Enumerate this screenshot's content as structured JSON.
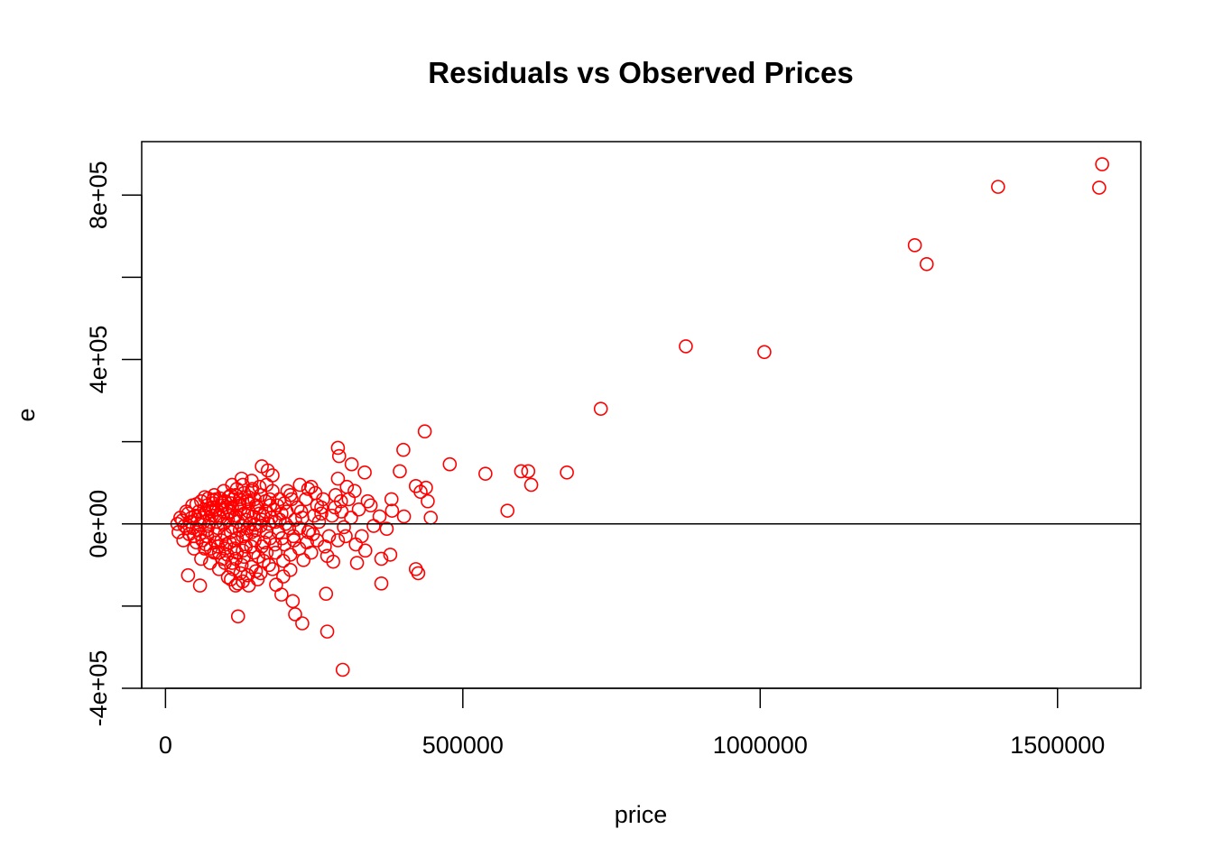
{
  "chart_data": {
    "type": "scatter",
    "title": "Residuals vs Observed Prices",
    "xlabel": "price",
    "ylabel": "e",
    "xlim": [
      -40000,
      1640000
    ],
    "ylim": [
      -400000,
      930000
    ],
    "x_ticks": [
      0,
      500000,
      1000000,
      1500000
    ],
    "x_tick_labels": [
      "0",
      "500000",
      "1000000",
      "1500000"
    ],
    "y_ticks": [
      -400000,
      -200000,
      0,
      200000,
      400000,
      600000,
      800000
    ],
    "y_tick_labels": [
      "-4e+05",
      "",
      "0e+00",
      "",
      "4e+05",
      "",
      "8e+05"
    ],
    "grid": false,
    "reference_line_y": 0,
    "colors": {
      "points": "#ff0000",
      "axes": "#000000",
      "reference_line": "#000000"
    },
    "series": [
      {
        "marker": "open-circle",
        "points": [
          [
            1575000,
            875000
          ],
          [
            1570000,
            818000
          ],
          [
            1400000,
            820000
          ],
          [
            1260000,
            678000
          ],
          [
            1280000,
            632000
          ],
          [
            875000,
            432000
          ],
          [
            1007000,
            418000
          ],
          [
            732000,
            280000
          ],
          [
            436000,
            225000
          ],
          [
            400000,
            180000
          ],
          [
            290000,
            185000
          ],
          [
            292000,
            165000
          ],
          [
            478000,
            145000
          ],
          [
            313000,
            145000
          ],
          [
            335000,
            125000
          ],
          [
            538000,
            122000
          ],
          [
            598000,
            128000
          ],
          [
            610000,
            128000
          ],
          [
            675000,
            125000
          ],
          [
            394000,
            128000
          ],
          [
            615000,
            95000
          ],
          [
            575000,
            32000
          ],
          [
            421000,
            92000
          ],
          [
            438000,
            88000
          ],
          [
            429000,
            78000
          ],
          [
            441000,
            55000
          ],
          [
            446000,
            15000
          ],
          [
            380000,
            60000
          ],
          [
            401000,
            18000
          ],
          [
            290000,
            110000
          ],
          [
            295000,
            55000
          ],
          [
            318000,
            80000
          ],
          [
            340000,
            55000
          ],
          [
            360000,
            18000
          ],
          [
            381000,
            32000
          ],
          [
            372000,
            -12000
          ],
          [
            378000,
            -75000
          ],
          [
            363000,
            -85000
          ],
          [
            363000,
            -145000
          ],
          [
            421000,
            -110000
          ],
          [
            425000,
            -120000
          ],
          [
            322000,
            -95000
          ],
          [
            336000,
            -65000
          ],
          [
            303000,
            -30000
          ],
          [
            290000,
            -40000
          ],
          [
            282000,
            -92000
          ],
          [
            272000,
            -78000
          ],
          [
            270000,
            -170000
          ],
          [
            272000,
            -262000
          ],
          [
            298000,
            -355000
          ],
          [
            230000,
            -242000
          ],
          [
            218000,
            -220000
          ],
          [
            214000,
            -188000
          ],
          [
            195000,
            -172000
          ],
          [
            186000,
            -148000
          ],
          [
            122000,
            -225000
          ],
          [
            38000,
            -125000
          ],
          [
            58000,
            -150000
          ],
          [
            162000,
            140000
          ],
          [
            172000,
            130000
          ],
          [
            180000,
            118000
          ],
          [
            240000,
            85000
          ],
          [
            252000,
            75000
          ],
          [
            226000,
            95000
          ],
          [
            210000,
            70000
          ],
          [
            200000,
            50000
          ],
          [
            262000,
            40000
          ],
          [
            250000,
            20000
          ],
          [
            242000,
            -15000
          ],
          [
            255000,
            -40000
          ],
          [
            245000,
            -70000
          ],
          [
            232000,
            -88000
          ],
          [
            210000,
            -112000
          ],
          [
            198000,
            -128000
          ],
          [
            180000,
            -110000
          ],
          [
            155000,
            -135000
          ],
          [
            140000,
            -150000
          ],
          [
            130000,
            -140000
          ],
          [
            118000,
            -150000
          ],
          [
            105000,
            -130000
          ],
          [
            90000,
            -110000
          ],
          [
            75000,
            -95000
          ],
          [
            60000,
            -85000
          ],
          [
            48000,
            -60000
          ],
          [
            30000,
            -40000
          ],
          [
            22000,
            -20000
          ],
          [
            20000,
            0
          ],
          [
            25000,
            15000
          ],
          [
            35000,
            30000
          ],
          [
            45000,
            45000
          ],
          [
            60000,
            55000
          ],
          [
            72000,
            62000
          ],
          [
            85000,
            60000
          ],
          [
            100000,
            55000
          ],
          [
            110000,
            70000
          ],
          [
            120000,
            85000
          ],
          [
            130000,
            95000
          ],
          [
            145000,
            80000
          ],
          [
            160000,
            70000
          ],
          [
            175000,
            60000
          ],
          [
            188000,
            45000
          ],
          [
            195000,
            25000
          ],
          [
            185000,
            5000
          ],
          [
            170000,
            -20000
          ],
          [
            150000,
            -40000
          ],
          [
            135000,
            -55000
          ],
          [
            120000,
            -70000
          ],
          [
            100000,
            -60000
          ],
          [
            85000,
            -45000
          ],
          [
            70000,
            -30000
          ],
          [
            55000,
            -15000
          ],
          [
            42000,
            5000
          ],
          [
            50000,
            20000
          ],
          [
            65000,
            35000
          ],
          [
            80000,
            40000
          ],
          [
            95000,
            35000
          ],
          [
            108000,
            30000
          ],
          [
            125000,
            45000
          ],
          [
            140000,
            50000
          ],
          [
            155000,
            40000
          ],
          [
            168000,
            30000
          ],
          [
            178000,
            15000
          ],
          [
            160000,
            -5000
          ],
          [
            145000,
            -20000
          ],
          [
            130000,
            -30000
          ],
          [
            115000,
            -40000
          ],
          [
            100000,
            -25000
          ],
          [
            88000,
            -10000
          ],
          [
            75000,
            5000
          ],
          [
            62000,
            15000
          ],
          [
            78000,
            20000
          ],
          [
            92000,
            15000
          ],
          [
            105000,
            10000
          ],
          [
            118000,
            20000
          ],
          [
            132000,
            25000
          ],
          [
            148000,
            18000
          ],
          [
            162000,
            10000
          ],
          [
            150000,
            -2000
          ],
          [
            138000,
            -10000
          ],
          [
            125000,
            -15000
          ],
          [
            112000,
            -8000
          ],
          [
            98000,
            0
          ],
          [
            85000,
            5000
          ],
          [
            72000,
            -5000
          ],
          [
            58000,
            -2000
          ],
          [
            68000,
            -50000
          ],
          [
            82000,
            -70000
          ],
          [
            96000,
            -85000
          ],
          [
            112000,
            -95000
          ],
          [
            128000,
            -100000
          ],
          [
            145000,
            -105000
          ],
          [
            165000,
            -90000
          ],
          [
            185000,
            -70000
          ],
          [
            200000,
            -50000
          ],
          [
            215000,
            -30000
          ],
          [
            225000,
            -10000
          ],
          [
            230000,
            15000
          ],
          [
            222000,
            40000
          ],
          [
            212000,
            60000
          ],
          [
            205000,
            80000
          ],
          [
            145000,
            105000
          ],
          [
            128000,
            110000
          ],
          [
            112000,
            95000
          ],
          [
            98000,
            80000
          ],
          [
            82000,
            70000
          ],
          [
            66000,
            65000
          ],
          [
            52000,
            48000
          ],
          [
            38000,
            25000
          ],
          [
            32000,
            -5000
          ],
          [
            40000,
            -25000
          ],
          [
            52000,
            -45000
          ],
          [
            66000,
            -60000
          ],
          [
            150000,
            60000
          ],
          [
            140000,
            65000
          ],
          [
            125000,
            60000
          ],
          [
            110000,
            50000
          ],
          [
            95000,
            52000
          ],
          [
            80000,
            50000
          ],
          [
            70000,
            45000
          ],
          [
            168000,
            55000
          ],
          [
            182000,
            35000
          ],
          [
            192000,
            10000
          ],
          [
            176000,
            -35000
          ],
          [
            162000,
            -55000
          ],
          [
            148000,
            -70000
          ],
          [
            132000,
            -80000
          ],
          [
            118000,
            -85000
          ],
          [
            104000,
            -75000
          ],
          [
            90000,
            -70000
          ],
          [
            76000,
            -60000
          ],
          [
            62000,
            -40000
          ],
          [
            48000,
            -30000
          ],
          [
            36000,
            -10000
          ],
          [
            28000,
            8000
          ],
          [
            265000,
            60000
          ],
          [
            258000,
            5000
          ],
          [
            248000,
            -25000
          ],
          [
            236000,
            60000
          ],
          [
            218000,
            10000
          ],
          [
            208000,
            -10000
          ],
          [
            286000,
            70000
          ],
          [
            305000,
            90000
          ],
          [
            325000,
            35000
          ],
          [
            345000,
            45000
          ],
          [
            350000,
            -5000
          ],
          [
            330000,
            -30000
          ],
          [
            312000,
            15000
          ],
          [
            300000,
            -8000
          ],
          [
            280000,
            20000
          ],
          [
            268000,
            -55000
          ],
          [
            140000,
            30000
          ],
          [
            135000,
            10000
          ],
          [
            128000,
            -5000
          ],
          [
            122000,
            5000
          ],
          [
            116000,
            15000
          ],
          [
            110000,
            -20000
          ],
          [
            104000,
            25000
          ],
          [
            126000,
            35000
          ],
          [
            142000,
            0
          ],
          [
            136000,
            -25000
          ],
          [
            120000,
            -35000
          ],
          [
            108000,
            -45000
          ],
          [
            94000,
            -40000
          ],
          [
            84000,
            -25000
          ],
          [
            90000,
            20000
          ],
          [
            78000,
            30000
          ],
          [
            102000,
            40000
          ],
          [
            114000,
            60000
          ],
          [
            158000,
            25000
          ],
          [
            152000,
            -15000
          ],
          [
            166000,
            -45000
          ],
          [
            174000,
            0
          ],
          [
            190000,
            -20000
          ],
          [
            198000,
            -90000
          ],
          [
            210000,
            -75000
          ],
          [
            225000,
            -60000
          ],
          [
            238000,
            -45000
          ],
          [
            255000,
            45000
          ],
          [
            245000,
            90000
          ],
          [
            262000,
            25000
          ],
          [
            275000,
            -30000
          ],
          [
            285000,
            40000
          ],
          [
            296000,
            30000
          ],
          [
            308000,
            60000
          ],
          [
            320000,
            -50000
          ],
          [
            240000,
            -20000
          ],
          [
            228000,
            30000
          ],
          [
            216000,
            -40000
          ],
          [
            204000,
            30000
          ],
          [
            192000,
            60000
          ],
          [
            180000,
            80000
          ],
          [
            170000,
            95000
          ],
          [
            158000,
            90000
          ],
          [
            146000,
            85000
          ],
          [
            132000,
            75000
          ],
          [
            118000,
            70000
          ],
          [
            106000,
            65000
          ],
          [
            92000,
            62000
          ],
          [
            80000,
            58000
          ],
          [
            68000,
            25000
          ],
          [
            56000,
            30000
          ],
          [
            44000,
            15000
          ],
          [
            46000,
            -10000
          ],
          [
            58000,
            -25000
          ],
          [
            70000,
            -15000
          ],
          [
            88000,
            -55000
          ],
          [
            102000,
            -50000
          ],
          [
            116000,
            -60000
          ],
          [
            130000,
            -65000
          ],
          [
            144000,
            -55000
          ],
          [
            156000,
            -80000
          ],
          [
            170000,
            -70000
          ],
          [
            184000,
            -50000
          ],
          [
            196000,
            -35000
          ],
          [
            202000,
            0
          ],
          [
            176000,
            45000
          ],
          [
            164000,
            20000
          ],
          [
            152000,
            45000
          ],
          [
            138000,
            55000
          ],
          [
            124000,
            50000
          ],
          [
            112000,
            40000
          ],
          [
            96000,
            45000
          ],
          [
            86000,
            35000
          ],
          [
            74000,
            38000
          ],
          [
            64000,
            5000
          ],
          [
            54000,
            10000
          ],
          [
            100000,
            -95000
          ],
          [
            114000,
            -110000
          ],
          [
            126000,
            -120000
          ],
          [
            138000,
            -125000
          ],
          [
            152000,
            -115000
          ],
          [
            122000,
            -145000
          ],
          [
            110000,
            -135000
          ],
          [
            160000,
            -120000
          ],
          [
            174000,
            -100000
          ]
        ]
      }
    ]
  }
}
